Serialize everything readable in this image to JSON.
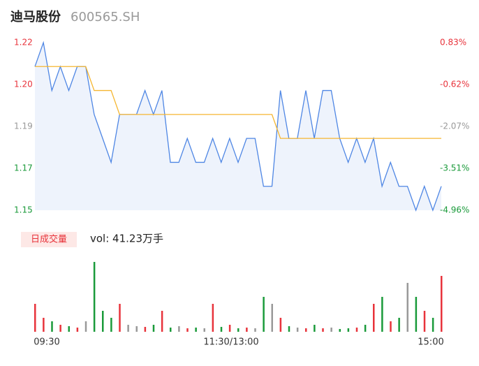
{
  "chart_data": [
    {
      "type": "line",
      "title": "迪马股份",
      "subtitle": "600565.SH",
      "x": [
        0,
        5,
        10,
        15,
        20,
        25,
        30,
        35,
        40,
        45,
        50,
        55,
        60,
        65,
        70,
        75,
        80,
        85,
        90,
        95,
        100,
        105,
        110,
        115,
        120,
        125,
        130,
        135,
        140,
        145,
        150,
        155,
        160,
        165,
        170,
        175,
        180,
        185,
        190,
        195,
        200,
        205,
        210,
        215,
        220,
        225,
        230,
        235,
        240
      ],
      "xlim": [
        0,
        240
      ],
      "series": [
        {
          "color": "#4e86e4",
          "values": [
            1.21,
            1.22,
            1.2,
            1.21,
            1.2,
            1.21,
            1.21,
            1.19,
            1.18,
            1.17,
            1.19,
            1.19,
            1.19,
            1.2,
            1.19,
            1.2,
            1.17,
            1.17,
            1.18,
            1.17,
            1.17,
            1.18,
            1.17,
            1.18,
            1.17,
            1.18,
            1.18,
            1.16,
            1.16,
            1.2,
            1.18,
            1.18,
            1.2,
            1.18,
            1.2,
            1.2,
            1.18,
            1.17,
            1.18,
            1.17,
            1.18,
            1.16,
            1.17,
            1.16,
            1.16,
            1.15,
            1.16,
            1.15,
            1.16
          ]
        },
        {
          "color": "#f5b630",
          "values": [
            1.21,
            1.21,
            1.21,
            1.21,
            1.21,
            1.21,
            1.21,
            1.2,
            1.2,
            1.2,
            1.19,
            1.19,
            1.19,
            1.19,
            1.19,
            1.19,
            1.19,
            1.19,
            1.19,
            1.19,
            1.19,
            1.19,
            1.19,
            1.19,
            1.19,
            1.19,
            1.19,
            1.19,
            1.19,
            1.18,
            1.18,
            1.18,
            1.18,
            1.18,
            1.18,
            1.18,
            1.18,
            1.18,
            1.18,
            1.18,
            1.18,
            1.18,
            1.18,
            1.18,
            1.18,
            1.18,
            1.18,
            1.18,
            1.18
          ]
        }
      ],
      "ylim": [
        1.15,
        1.22
      ],
      "yticks": [
        1.22,
        {
          "value": 1.2025,
          "label": "1.20"
        },
        {
          "value": 1.185,
          "label": "1.19"
        },
        {
          "value": 1.1675,
          "label": "1.17"
        },
        1.15
      ],
      "ytick_colors": [
        "#e8333b",
        "#e8333b",
        "#999999",
        "#1a9a3a",
        "#1a9a3a"
      ],
      "y2lim": [
        -4.96,
        0.83
      ],
      "y2ticks": [
        {
          "value": 0.83,
          "label": "0.83%"
        },
        {
          "value": -0.62,
          "label": "-0.62%"
        },
        {
          "value": -2.07,
          "label": "-2.07%"
        },
        {
          "value": -3.51,
          "label": "-3.51%"
        },
        {
          "value": -4.96,
          "label": "-4.96%"
        }
      ],
      "y2tick_colors": [
        "#e8333b",
        "#e8333b",
        "#999999",
        "#1a9a3a",
        "#1a9a3a"
      ],
      "fill": "#eef3fc"
    },
    {
      "type": "bar",
      "label": "日成交量",
      "annotation": "vol: 41.23万手",
      "x": [
        0,
        5,
        10,
        15,
        20,
        25,
        30,
        35,
        40,
        45,
        50,
        55,
        60,
        65,
        70,
        75,
        80,
        85,
        90,
        95,
        100,
        105,
        110,
        115,
        120,
        125,
        130,
        135,
        140,
        145,
        150,
        155,
        160,
        165,
        170,
        175,
        180,
        185,
        190,
        195,
        200,
        205,
        210,
        215,
        220,
        225,
        230,
        235,
        240
      ],
      "xlim": [
        0,
        240
      ],
      "xticks": [
        {
          "value": 0,
          "label": "09:30"
        },
        {
          "value": 120,
          "label": "11:30/13:00"
        },
        {
          "value": 240,
          "label": "15:00"
        }
      ],
      "values": [
        4,
        2,
        1.5,
        1,
        0.8,
        0.6,
        1.5,
        10,
        3,
        2,
        4,
        1,
        0.8,
        0.7,
        1,
        3,
        0.6,
        0.8,
        0.5,
        0.6,
        0.5,
        4,
        0.7,
        1,
        0.5,
        0.6,
        0.5,
        5,
        4,
        2,
        0.8,
        0.6,
        0.5,
        1,
        0.5,
        0.6,
        0.4,
        0.5,
        0.6,
        1,
        4,
        5,
        1.5,
        2,
        7,
        5,
        3,
        2,
        8
      ],
      "ylim": [
        0,
        10
      ],
      "colors": {
        "up": "#e8333b",
        "down": "#1a9a3a",
        "flat": "#999999"
      }
    }
  ]
}
